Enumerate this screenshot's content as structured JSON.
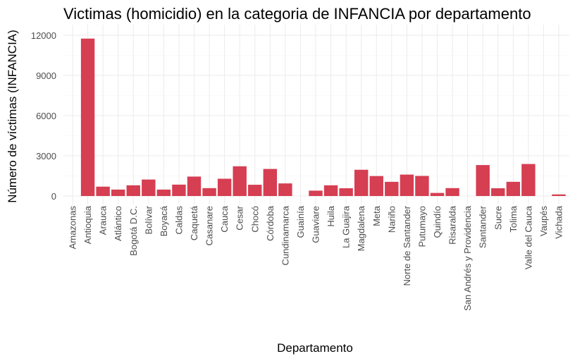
{
  "chart_data": {
    "type": "bar",
    "title": "Victimas (homicidio) en la categoria de INFANCIA por departamento",
    "xlabel": "Departamento",
    "ylabel": "Número de víctimas (INFANCIA)",
    "ylim": [
      0,
      12600
    ],
    "yticks": [
      0,
      3000,
      6000,
      9000,
      12000
    ],
    "ytick_labels": [
      "0",
      "3000",
      "6000",
      "9000",
      "12000"
    ],
    "grid": true,
    "bar_color": "#d63e52",
    "categories": [
      "Amazonas",
      "Antioquia",
      "Arauca",
      "Atlántico",
      "Bogotá D.C.",
      "Bolívar",
      "Boyacá",
      "Caldas",
      "Caquetá",
      "Casanare",
      "Cauca",
      "Cesar",
      "Chocó",
      "Córdoba",
      "Cundinamarca",
      "Guainía",
      "Guaviare",
      "Huila",
      "La Guajira",
      "Magdalena",
      "Meta",
      "Nariño",
      "Norte de Santander",
      "Putumayo",
      "Quindío",
      "Risaralda",
      "San Andrés y Providencia",
      "Santander",
      "Sucre",
      "Tolima",
      "Valle del Cauca",
      "Vaupés",
      "Vichada"
    ],
    "values": [
      0,
      11750,
      700,
      480,
      800,
      1230,
      480,
      850,
      1450,
      590,
      1290,
      2220,
      840,
      2020,
      940,
      0,
      400,
      800,
      580,
      1960,
      1490,
      1060,
      1600,
      1500,
      230,
      590,
      0,
      2310,
      580,
      1060,
      2390,
      0,
      120
    ]
  }
}
